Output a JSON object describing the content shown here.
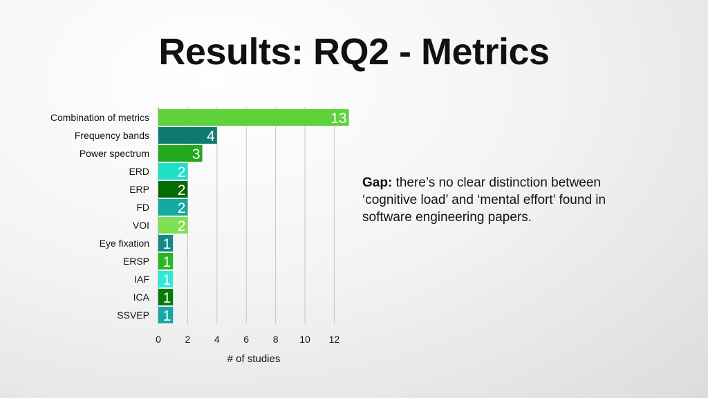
{
  "slide": {
    "title": "Results: RQ2 - Metrics"
  },
  "note": {
    "label": "Gap:",
    "text": " there’s no clear distinction between ‘cognitive load’ and ‘mental effort’ found in software engineering papers."
  },
  "chart_data": {
    "type": "bar",
    "orientation": "horizontal",
    "categories": [
      "Combination of metrics",
      "Frequency bands",
      "Power spectrum",
      "ERD",
      "ERP",
      "FD",
      "VOI",
      "Eye fixation",
      "ERSP",
      "IAF",
      "ICA",
      "SSVEP"
    ],
    "values": [
      13,
      4,
      3,
      2,
      2,
      2,
      2,
      1,
      1,
      1,
      1,
      1
    ],
    "colors": [
      "#5fd13a",
      "#0f7a72",
      "#22a81a",
      "#1ee0c8",
      "#056b05",
      "#14aaa0",
      "#7ee052",
      "#138a88",
      "#26b820",
      "#2fe8d8",
      "#067a08",
      "#16a8a6"
    ],
    "xticks": [
      "0",
      "2",
      "4",
      "6",
      "8",
      "10",
      "12"
    ],
    "xlabel": "# of studies",
    "ylabel": "",
    "xlim": [
      0,
      13
    ],
    "grid": "vertical",
    "legend": "none"
  }
}
